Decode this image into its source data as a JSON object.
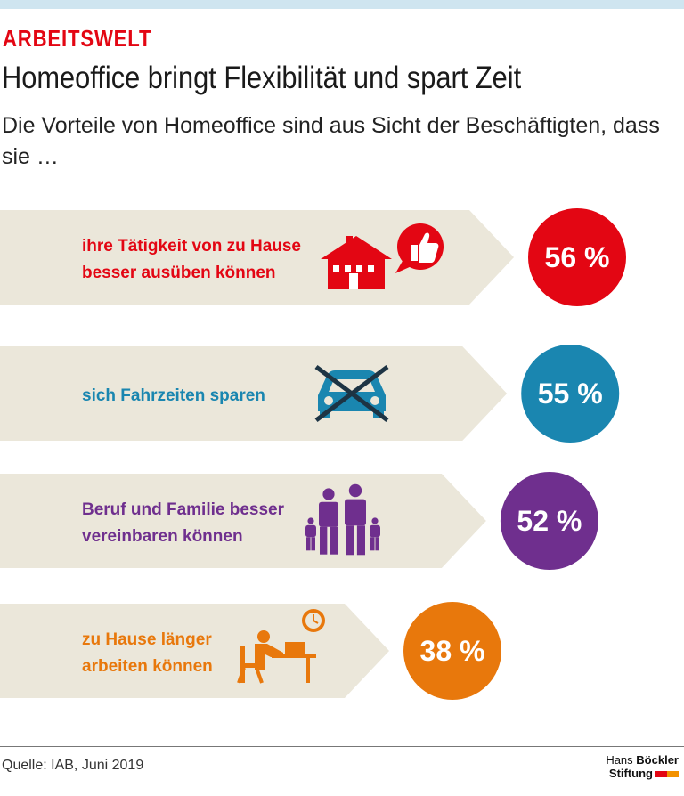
{
  "header": {
    "section": "ARBEITSWELT",
    "title": "Homeoffice bringt Flexibilität und spart Zeit",
    "subtitle": "Die Vorteile von Homeoffice sind aus Sicht der Beschäftigten, dass sie …"
  },
  "chart_data": {
    "type": "bar",
    "title": "Homeoffice bringt Flexibilität und spart Zeit",
    "categories": [
      "ihre Tätigkeit von zu Hause besser ausüben können",
      "sich Fahrzeiten sparen",
      "Beruf und Familie besser vereinbaren können",
      "zu Hause länger arbeiten können"
    ],
    "values": [
      56,
      55,
      52,
      38
    ],
    "unit": "%",
    "labels": [
      {
        "line1": "ihre Tätigkeit von zu Hause",
        "line2": "besser ausüben können",
        "value_label": "56 %",
        "color": "#e30613",
        "icon": "house-thumbs-up-icon"
      },
      {
        "line1": "sich Fahrzeiten sparen",
        "line2": "",
        "value_label": "55 %",
        "color": "#1a86b0",
        "icon": "crossed-car-icon"
      },
      {
        "line1": "Beruf und Familie besser",
        "line2": "vereinbaren können",
        "value_label": "52 %",
        "color": "#6f2f8e",
        "icon": "family-icon"
      },
      {
        "line1": "zu Hause länger",
        "line2": "arbeiten können",
        "value_label": "38 %",
        "color": "#e8780c",
        "icon": "person-at-desk-clock-icon"
      }
    ],
    "arrow_color": "#ebe7da",
    "dark_color": "#1d3444"
  },
  "footer": {
    "source": "Quelle: IAB, Juni 2019",
    "logo_line1_a": "Hans",
    "logo_line1_b": "Böckler",
    "logo_line2": "Stiftung"
  }
}
